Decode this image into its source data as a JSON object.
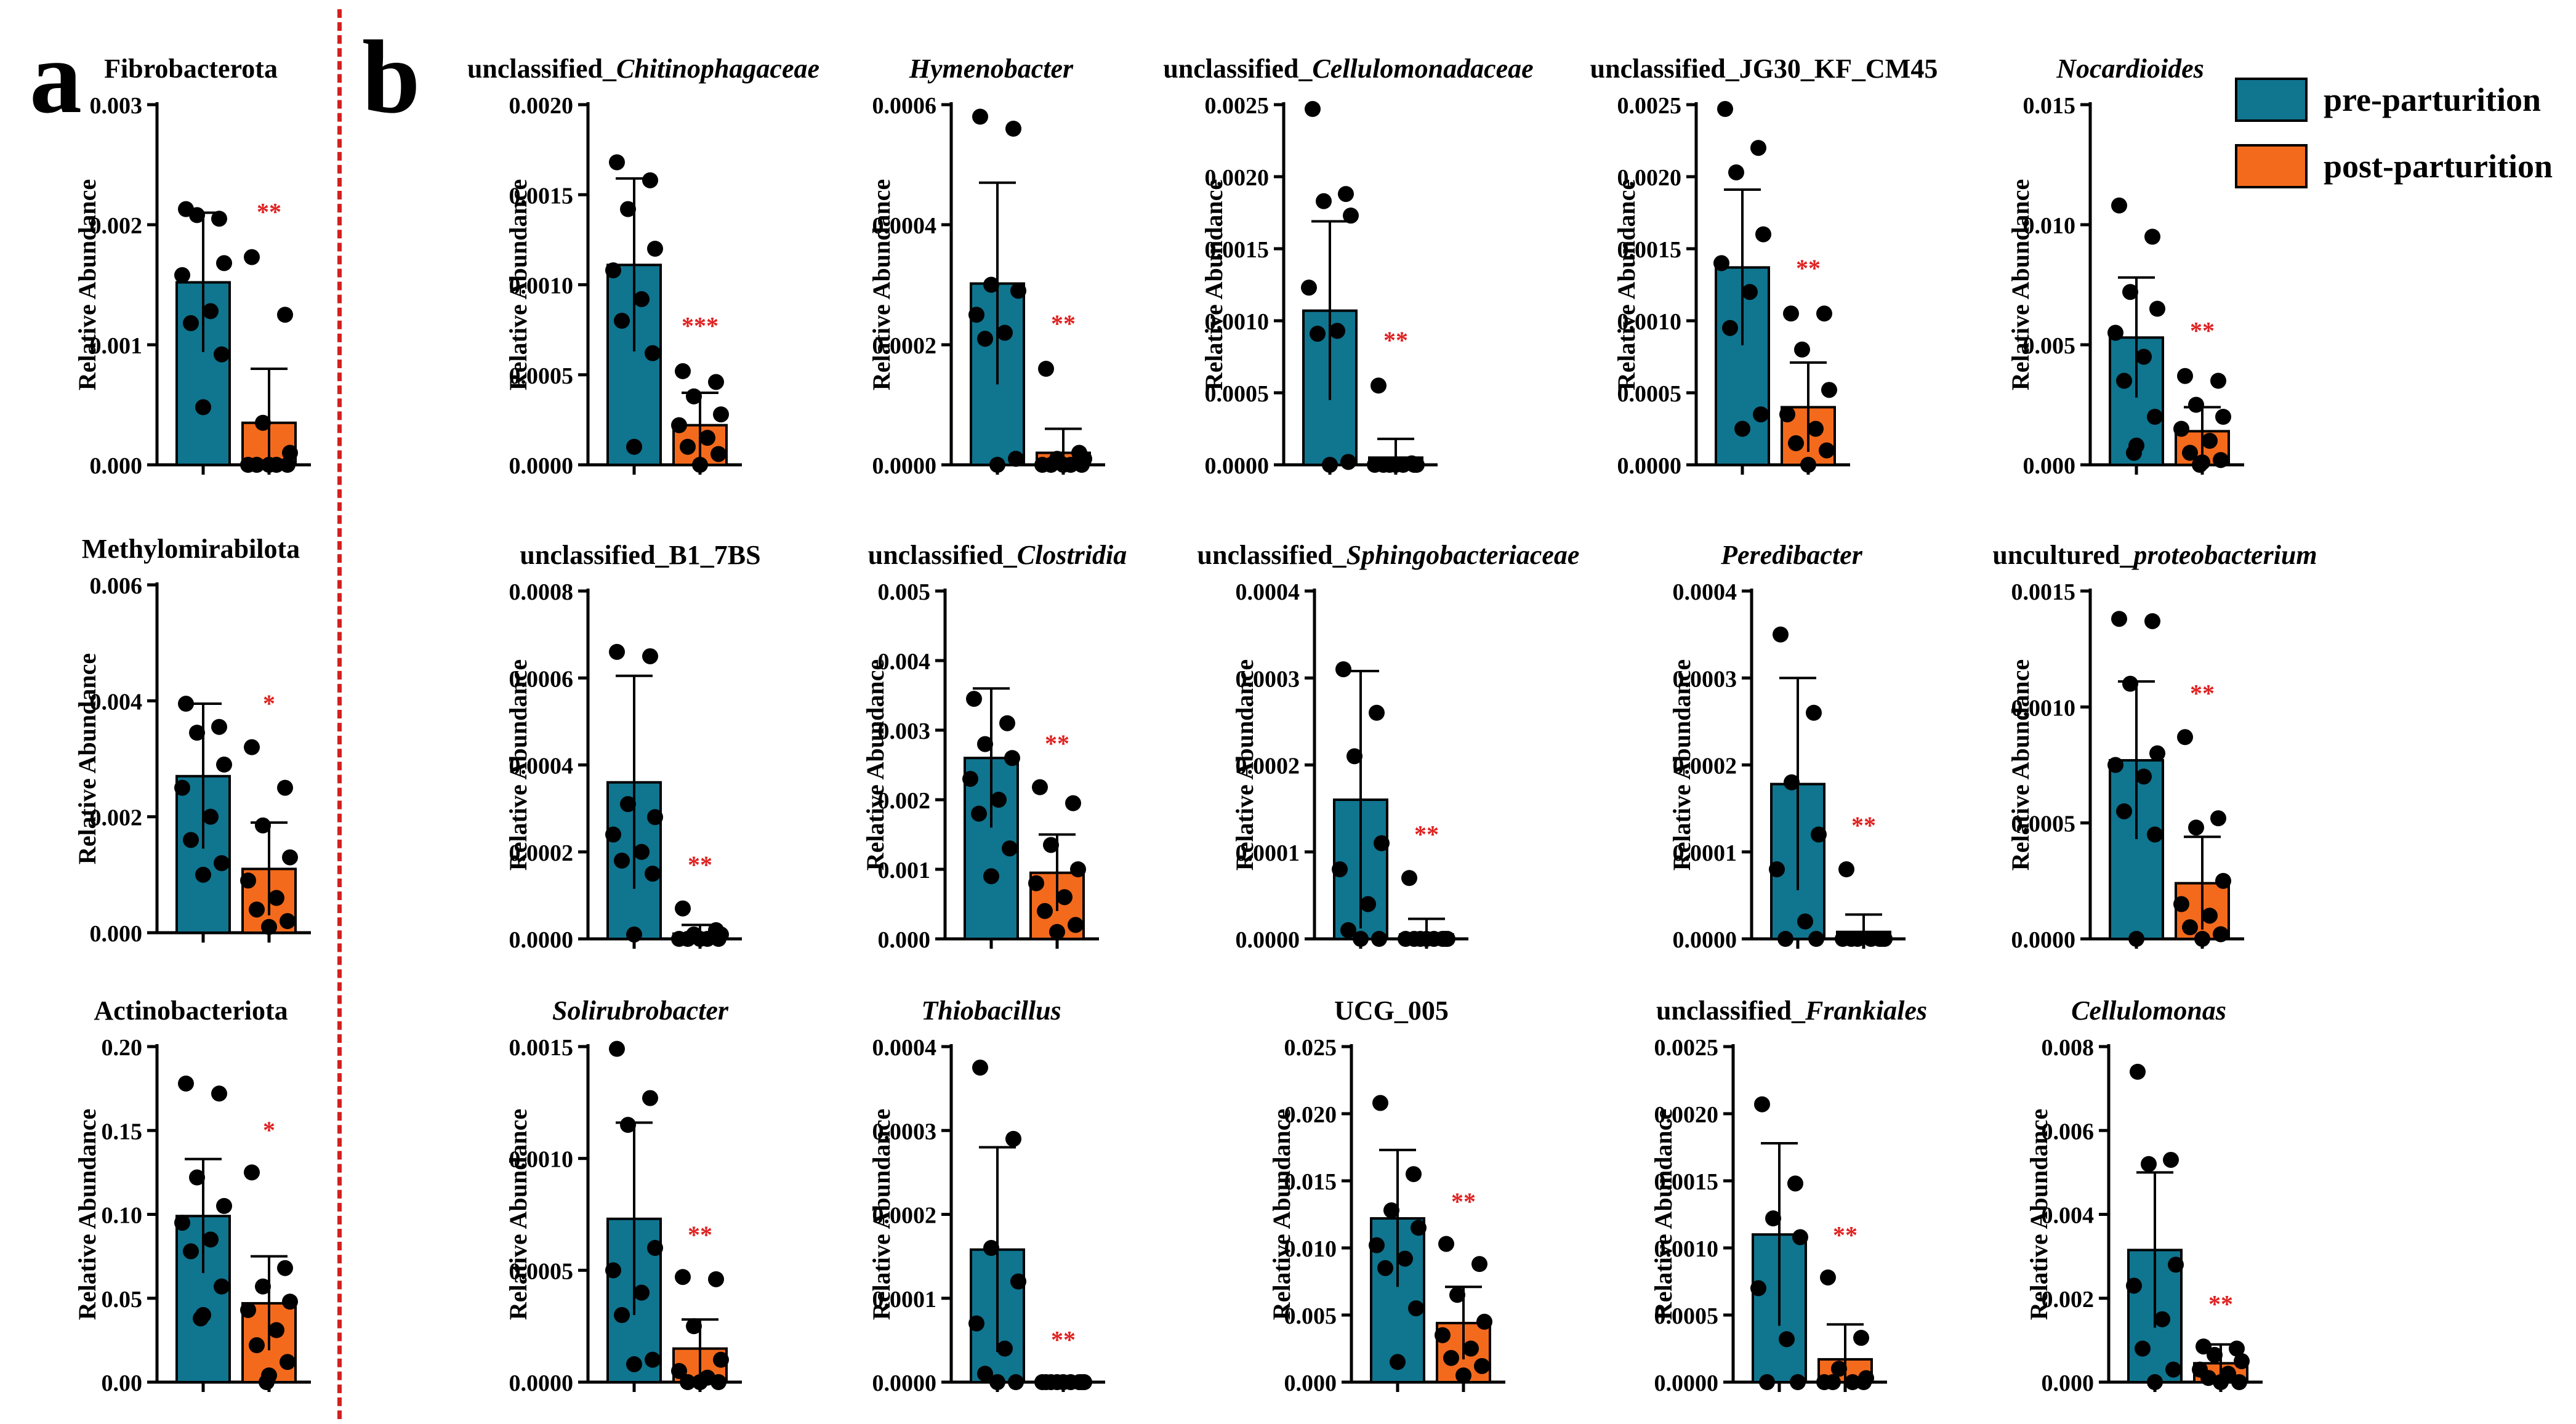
{
  "panel_labels": {
    "a": "a",
    "b": "b"
  },
  "legend": [
    {
      "label": "pre-parturition",
      "color": "#10758f"
    },
    {
      "label": "post-parturition",
      "color": "#f46a1c"
    }
  ],
  "colors": {
    "pre": "#10758f",
    "post": "#f46a1c",
    "significance": "#e02020",
    "divider": "#d42020"
  },
  "chart_data": [
    {
      "type": "bar",
      "title": "Fibrobacterota",
      "title_prefix": "",
      "title_italic": "",
      "ylabel": "Relative Abundance",
      "yticks": [
        "0.000",
        "0.001",
        "0.002",
        "0.003"
      ],
      "ylim": [
        0,
        0.003
      ],
      "categories": [
        "pre-parturition",
        "post-parturition"
      ],
      "values": [
        0.00152,
        0.00035
      ],
      "errors": [
        0.00058,
        0.00045
      ],
      "points": [
        [
          0.00213,
          0.00205,
          0.00208,
          0.00168,
          0.00158,
          0.00128,
          0.00118,
          0.00092,
          0.00048
        ],
        [
          0.00173,
          0.00125,
          0.00035,
          0.0001,
          0.0,
          0.0,
          0.0,
          0.0,
          0.0
        ]
      ],
      "significance": "**"
    },
    {
      "type": "bar",
      "title": "Methylomirabilota",
      "title_prefix": "",
      "title_italic": "",
      "ylabel": "Relative Abundance",
      "yticks": [
        "0.000",
        "0.002",
        "0.004",
        "0.006"
      ],
      "ylim": [
        0,
        0.006
      ],
      "categories": [
        "pre-parturition",
        "post-parturition"
      ],
      "values": [
        0.0027,
        0.0011
      ],
      "errors": [
        0.00125,
        0.0008
      ],
      "points": [
        [
          0.00395,
          0.00355,
          0.00345,
          0.0029,
          0.0025,
          0.002,
          0.0016,
          0.0012,
          0.001
        ],
        [
          0.0032,
          0.0025,
          0.00185,
          0.0013,
          0.0009,
          0.0006,
          0.0004,
          0.0002,
          0.0001
        ]
      ],
      "significance": "*"
    },
    {
      "type": "bar",
      "title": "Actinobacteriota",
      "title_prefix": "",
      "title_italic": "",
      "ylabel": "Relative Abundance",
      "yticks": [
        "0.00",
        "0.05",
        "0.10",
        "0.15",
        "0.20"
      ],
      "ylim": [
        0,
        0.2
      ],
      "categories": [
        "pre-parturition",
        "post-parturition"
      ],
      "values": [
        0.099,
        0.047
      ],
      "errors": [
        0.034,
        0.028
      ],
      "points": [
        [
          0.178,
          0.172,
          0.122,
          0.105,
          0.095,
          0.085,
          0.078,
          0.057,
          0.04,
          0.038
        ],
        [
          0.125,
          0.068,
          0.057,
          0.048,
          0.043,
          0.031,
          0.022,
          0.012,
          0.004,
          0.0
        ]
      ],
      "significance": "*"
    },
    {
      "type": "bar",
      "title": "unclassified_Chitinophagaceae",
      "title_prefix": "unclassified_",
      "title_italic": "Chitinophagaceae",
      "ylabel": "Relative Abundance",
      "yticks": [
        "0.0000",
        "0.0005",
        "0.0010",
        "0.0015",
        "0.0020"
      ],
      "ylim": [
        0,
        0.002
      ],
      "categories": [
        "pre-parturition",
        "post-parturition"
      ],
      "values": [
        0.00111,
        0.00022
      ],
      "errors": [
        0.00048,
        0.00018
      ],
      "points": [
        [
          0.00168,
          0.00158,
          0.00142,
          0.0012,
          0.00108,
          0.00092,
          0.0008,
          0.00062,
          0.0001
        ],
        [
          0.00052,
          0.00046,
          0.00038,
          0.00028,
          0.00022,
          0.00015,
          0.0001,
          6e-05,
          0.0
        ]
      ],
      "significance": "***"
    },
    {
      "type": "bar",
      "title": "Hymenobacter",
      "title_prefix": "",
      "title_italic": "Hymenobacter",
      "ylabel": "Relative Abundance",
      "yticks": [
        "0.0000",
        "0.0002",
        "0.0004",
        "0.0006"
      ],
      "ylim": [
        0,
        0.0006
      ],
      "categories": [
        "pre-parturition",
        "post-parturition"
      ],
      "values": [
        0.000302,
        2e-05
      ],
      "errors": [
        0.000168,
        4e-05
      ],
      "points": [
        [
          0.00058,
          0.00056,
          0.0003,
          0.00029,
          0.00025,
          0.00022,
          0.00021,
          1e-05,
          0.0
        ],
        [
          0.00016,
          2e-05,
          1e-05,
          1e-05,
          0.0,
          0.0,
          0.0,
          0.0,
          0.0
        ]
      ],
      "significance": "**"
    },
    {
      "type": "bar",
      "title": "unclassified_Cellulomonadaceae",
      "title_prefix": "unclassified_",
      "title_italic": "Cellulomonadaceae",
      "ylabel": "Relative Abundance",
      "yticks": [
        "0.0000",
        "0.0005",
        "0.0010",
        "0.0015",
        "0.0020",
        "0.0025"
      ],
      "ylim": [
        0,
        0.0025
      ],
      "categories": [
        "pre-parturition",
        "post-parturition"
      ],
      "values": [
        0.00107,
        5e-05
      ],
      "errors": [
        0.00062,
        0.00013
      ],
      "points": [
        [
          0.00247,
          0.00188,
          0.00183,
          0.00173,
          0.00123,
          0.00093,
          0.00091,
          2e-05,
          0.0
        ],
        [
          0.00055,
          1e-05,
          0.0,
          0.0,
          0.0,
          0.0,
          0.0,
          0.0,
          0.0
        ]
      ],
      "significance": "**"
    },
    {
      "type": "bar",
      "title": "unclassified_JG30_KF_CM45",
      "title_prefix": "",
      "title_italic": "",
      "ylabel": "Relative Abundance",
      "yticks": [
        "0.0000",
        "0.0005",
        "0.0010",
        "0.0015",
        "0.0020",
        "0.0025"
      ],
      "ylim": [
        0,
        0.0025
      ],
      "categories": [
        "pre-parturition",
        "post-parturition"
      ],
      "values": [
        0.00137,
        0.0004
      ],
      "errors": [
        0.00054,
        0.00031
      ],
      "points": [
        [
          0.00247,
          0.0022,
          0.00203,
          0.0016,
          0.0014,
          0.0012,
          0.00095,
          0.00035,
          0.00025
        ],
        [
          0.00105,
          0.00105,
          0.0008,
          0.00052,
          0.00035,
          0.00025,
          0.00015,
          0.0001,
          0.0
        ]
      ],
      "significance": "**"
    },
    {
      "type": "bar",
      "title": "Nocardioides",
      "title_prefix": "",
      "title_italic": "Nocardioides",
      "ylabel": "Relative Abundance",
      "yticks": [
        "0.000",
        "0.005",
        "0.010",
        "0.015"
      ],
      "ylim": [
        0,
        0.015
      ],
      "categories": [
        "pre-parturition",
        "post-parturition"
      ],
      "values": [
        0.0053,
        0.0014
      ],
      "errors": [
        0.0025,
        0.001
      ],
      "points": [
        [
          0.0108,
          0.0095,
          0.0072,
          0.0065,
          0.0055,
          0.0045,
          0.0035,
          0.002,
          0.0008,
          0.0005
        ],
        [
          0.0037,
          0.0035,
          0.0025,
          0.002,
          0.0015,
          0.001,
          0.0005,
          0.0002,
          0.0001,
          0.0
        ]
      ],
      "significance": "**"
    },
    {
      "type": "bar",
      "title": "unclassified_B1_7BS",
      "title_prefix": "",
      "title_italic": "",
      "ylabel": "Relative Abundance",
      "yticks": [
        "0.0000",
        "0.0002",
        "0.0004",
        "0.0006",
        "0.0008"
      ],
      "ylim": [
        0,
        0.0008
      ],
      "categories": [
        "pre-parturition",
        "post-parturition"
      ],
      "values": [
        0.00036,
        1.2e-05
      ],
      "errors": [
        0.000245,
        2e-05
      ],
      "points": [
        [
          0.00066,
          0.00065,
          0.00031,
          0.00028,
          0.00024,
          0.0002,
          0.00018,
          0.00015,
          1e-05
        ],
        [
          7e-05,
          2e-05,
          1e-05,
          1e-05,
          0.0,
          0.0,
          0.0,
          0.0,
          0.0
        ]
      ],
      "significance": "**"
    },
    {
      "type": "bar",
      "title": "unclassified_Clostridia",
      "title_prefix": "unclassified_",
      "title_italic": "Clostridia",
      "ylabel": "Relative Abundance",
      "yticks": [
        "0.000",
        "0.001",
        "0.002",
        "0.003",
        "0.004",
        "0.005"
      ],
      "ylim": [
        0,
        0.005
      ],
      "categories": [
        "pre-parturition",
        "post-parturition"
      ],
      "values": [
        0.0026,
        0.00095
      ],
      "errors": [
        0.001,
        0.00055
      ],
      "points": [
        [
          0.00345,
          0.0031,
          0.0028,
          0.0026,
          0.0023,
          0.002,
          0.0018,
          0.0013,
          0.0009
        ],
        [
          0.00218,
          0.00195,
          0.00135,
          0.001,
          0.0008,
          0.0006,
          0.0004,
          0.0002,
          0.0001
        ]
      ],
      "significance": "**"
    },
    {
      "type": "bar",
      "title": "unclassified_Sphingobacteriaceae",
      "title_prefix": "unclassified_",
      "title_italic": "Sphingobacteriaceae",
      "ylabel": "Relative Abundance",
      "yticks": [
        "0.0000",
        "0.0001",
        "0.0002",
        "0.0003",
        "0.0004"
      ],
      "ylim": [
        0,
        0.0004
      ],
      "categories": [
        "pre-parturition",
        "post-parturition"
      ],
      "values": [
        0.00016,
        5e-06
      ],
      "errors": [
        0.000148,
        1.8e-05
      ],
      "points": [
        [
          0.00031,
          0.00026,
          0.00021,
          0.00011,
          8e-05,
          4e-05,
          1e-05,
          0.0,
          0.0
        ],
        [
          7e-05,
          0.0,
          0.0,
          0.0,
          0.0,
          0.0,
          0.0,
          0.0,
          0.0
        ]
      ],
      "significance": "**"
    },
    {
      "type": "bar",
      "title": "Peredibacter",
      "title_prefix": "",
      "title_italic": "Peredibacter",
      "ylabel": "Relative Abundance",
      "yticks": [
        "0.0000",
        "0.0001",
        "0.0002",
        "0.0003",
        "0.0004"
      ],
      "ylim": [
        0,
        0.0004
      ],
      "categories": [
        "pre-parturition",
        "post-parturition"
      ],
      "values": [
        0.000178,
        8e-06
      ],
      "errors": [
        0.000122,
        2e-05
      ],
      "points": [
        [
          0.00035,
          0.00026,
          0.00018,
          0.00012,
          8e-05,
          2e-05,
          0.0,
          0.0
        ],
        [
          8e-05,
          0.0,
          0.0,
          0.0,
          0.0,
          0.0,
          0.0,
          0.0
        ]
      ],
      "significance": "**"
    },
    {
      "type": "bar",
      "title": "uncultured_proteobacterium",
      "title_prefix": "uncultured_",
      "title_italic": "proteobacterium",
      "ylabel": "Relative Abundance",
      "yticks": [
        "0.0000",
        "0.0005",
        "0.0010",
        "0.0015"
      ],
      "ylim": [
        0,
        0.0015
      ],
      "categories": [
        "pre-parturition",
        "post-parturition"
      ],
      "values": [
        0.00077,
        0.00024
      ],
      "errors": [
        0.00034,
        0.0002
      ],
      "points": [
        [
          0.00138,
          0.00137,
          0.0011,
          0.0008,
          0.00075,
          0.0007,
          0.00055,
          0.00045,
          0.0
        ],
        [
          0.00087,
          0.00052,
          0.00048,
          0.00025,
          0.00015,
          0.0001,
          5e-05,
          2e-05,
          0.0
        ]
      ],
      "significance": "**"
    },
    {
      "type": "bar",
      "title": "Solirubrobacter",
      "title_prefix": "",
      "title_italic": "Solirubrobacter",
      "ylabel": "Relative Abundance",
      "yticks": [
        "0.0000",
        "0.0005",
        "0.0010",
        "0.0015"
      ],
      "ylim": [
        0,
        0.0015
      ],
      "categories": [
        "pre-parturition",
        "post-parturition"
      ],
      "values": [
        0.00073,
        0.00015
      ],
      "errors": [
        0.00043,
        0.00013
      ],
      "points": [
        [
          0.00149,
          0.00127,
          0.00115,
          0.0006,
          0.0005,
          0.0004,
          0.0003,
          0.0001,
          8e-05
        ],
        [
          0.00047,
          0.00046,
          0.00025,
          0.0001,
          5e-05,
          2e-05,
          0.0,
          0.0,
          0.0
        ]
      ],
      "significance": "**"
    },
    {
      "type": "bar",
      "title": "Thiobacillus",
      "title_prefix": "",
      "title_italic": "Thiobacillus",
      "ylabel": "Relative Abundance",
      "yticks": [
        "0.0000",
        "0.0001",
        "0.0002",
        "0.0003",
        "0.0004"
      ],
      "ylim": [
        0,
        0.0004
      ],
      "categories": [
        "pre-parturition",
        "post-parturition"
      ],
      "values": [
        0.000158,
        5e-07
      ],
      "errors": [
        0.000122,
        0.0
      ],
      "points": [
        [
          0.000375,
          0.00029,
          0.00016,
          0.00012,
          7e-05,
          4e-05,
          1e-05,
          0.0,
          0.0
        ],
        [
          0.0,
          0.0,
          0.0,
          0.0,
          0.0,
          0.0,
          0.0,
          0.0,
          0.0
        ]
      ],
      "significance": "**"
    },
    {
      "type": "bar",
      "title": "UCG_005",
      "title_prefix": "",
      "title_italic": "",
      "ylabel": "Relative Abundance",
      "yticks": [
        "0.000",
        "0.005",
        "0.010",
        "0.015",
        "0.020",
        "0.025"
      ],
      "ylim": [
        0,
        0.025
      ],
      "categories": [
        "pre-parturition",
        "post-parturition"
      ],
      "values": [
        0.0122,
        0.0044
      ],
      "errors": [
        0.0051,
        0.0027
      ],
      "points": [
        [
          0.0208,
          0.0155,
          0.0128,
          0.0115,
          0.0102,
          0.0092,
          0.0085,
          0.0055,
          0.0015
        ],
        [
          0.0103,
          0.0088,
          0.0065,
          0.0045,
          0.0035,
          0.0025,
          0.0018,
          0.0012,
          0.0005
        ]
      ],
      "significance": "**"
    },
    {
      "type": "bar",
      "title": "unclassified_Frankiales",
      "title_prefix": "unclassified_",
      "title_italic": "Frankiales",
      "ylabel": "Relative Abundance",
      "yticks": [
        "0.0000",
        "0.0005",
        "0.0010",
        "0.0015",
        "0.0020",
        "0.0025"
      ],
      "ylim": [
        0,
        0.0025
      ],
      "categories": [
        "pre-parturition",
        "post-parturition"
      ],
      "values": [
        0.0011,
        0.00017
      ],
      "errors": [
        0.00068,
        0.00026
      ],
      "points": [
        [
          0.00207,
          0.00148,
          0.00122,
          0.00108,
          0.0007,
          0.00032,
          0.0,
          0.0
        ],
        [
          0.00078,
          0.00033,
          0.0001,
          3e-05,
          0.0,
          0.0,
          0.0,
          0.0
        ]
      ],
      "significance": "**"
    },
    {
      "type": "bar",
      "title": "Cellulomonas",
      "title_prefix": "",
      "title_italic": "Cellulomonas",
      "ylabel": "Relative Abundance",
      "yticks": [
        "0.000",
        "0.002",
        "0.004",
        "0.006",
        "0.008"
      ],
      "ylim": [
        0,
        0.008
      ],
      "categories": [
        "pre-parturition",
        "post-parturition"
      ],
      "values": [
        0.00315,
        0.00045
      ],
      "errors": [
        0.00185,
        0.00045
      ],
      "points": [
        [
          0.0074,
          0.0053,
          0.0052,
          0.0028,
          0.0023,
          0.0015,
          0.0008,
          0.0003,
          0.0
        ],
        [
          0.00085,
          0.0008,
          0.00065,
          0.0005,
          0.0003,
          0.0002,
          0.0001,
          0.0,
          0.0
        ]
      ],
      "significance": "**"
    }
  ]
}
